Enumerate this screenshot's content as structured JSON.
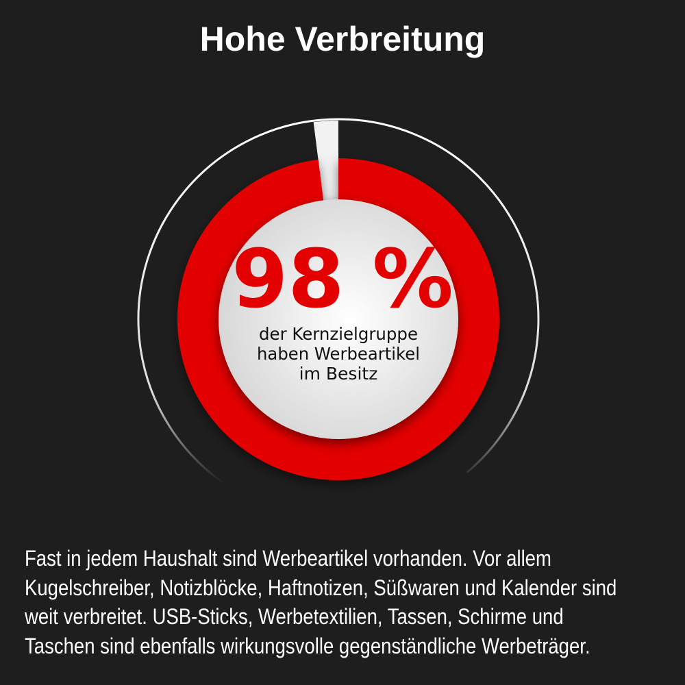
{
  "title": "Hohe Verbreitung",
  "chart_data": {
    "type": "pie",
    "subtype": "donut",
    "values": [
      98,
      2
    ],
    "value_label": "98 %",
    "caption_lines": [
      "der Kernzielgruppe",
      "haben Werbeartikel",
      "im Besitz"
    ],
    "colors": {
      "filled": "#e30000",
      "remaining": "#f2f2f2",
      "center": "#e4e4e4",
      "value_text": "#e30000"
    }
  },
  "body_lines": [
    "Fast in jedem Haushalt sind Werbeartikel vorhanden. Vor allem",
    "Kugelschreiber, Notizblöcke, Haftnotizen, Süßwaren und Kalender sind",
    "weit verbreitet. USB-Sticks, Werbetextilien, Tassen, Schirme und",
    "Taschen sind ebenfalls wirkungsvolle gegenständliche Werbeträger."
  ]
}
